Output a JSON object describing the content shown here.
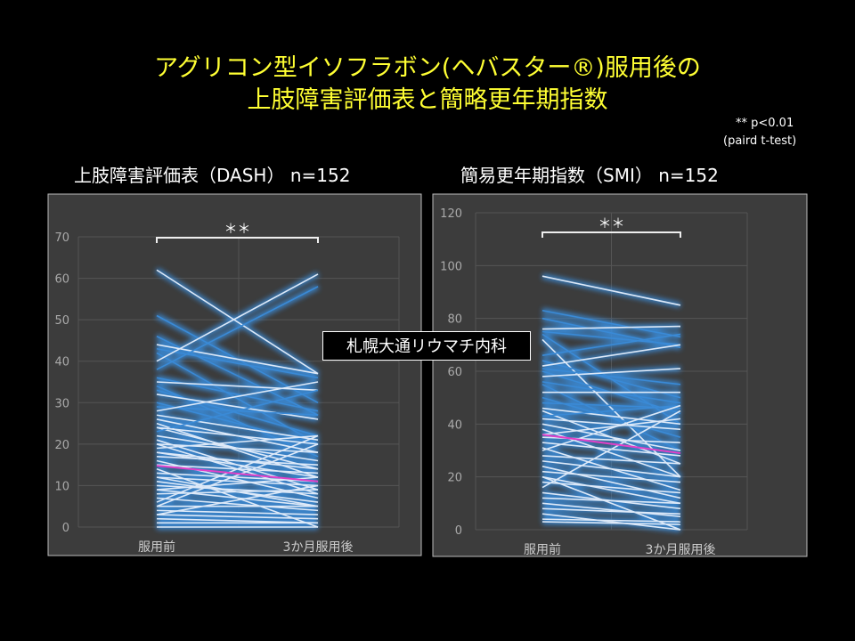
{
  "title": {
    "line1": "アグリコン型イソフラボン(ヘバスター®)服用後の",
    "line2": "上肢障害評価表と簡略更年期指数"
  },
  "note": {
    "line1": "** p<0.01",
    "line2": "(paird t-test)"
  },
  "watermark": "札幌大通リウマチ内科",
  "colors": {
    "title": "#ffff33",
    "line_blue": "#3a8ad6",
    "line_white": "#dde9f8",
    "mean": "#e040c8",
    "panel": "#3c3c3c"
  },
  "chart_data": [
    {
      "type": "line",
      "subtitle": "上肢障害評価表（DASH） n=152",
      "categories": [
        "服用前",
        "3か月服用後"
      ],
      "ylim": [
        0,
        70
      ],
      "yticks": [
        0,
        10,
        20,
        30,
        40,
        50,
        60,
        70
      ],
      "grid": true,
      "significance": "＊＊",
      "mean": [
        14.8,
        11
      ],
      "pairs": [
        [
          62,
          37
        ],
        [
          51,
          30
        ],
        [
          46,
          27
        ],
        [
          44,
          37
        ],
        [
          43,
          36
        ],
        [
          42,
          20
        ],
        [
          40,
          61
        ],
        [
          38,
          58
        ],
        [
          36,
          28
        ],
        [
          35,
          33
        ],
        [
          34,
          17
        ],
        [
          33,
          22
        ],
        [
          32,
          26
        ],
        [
          30,
          20
        ],
        [
          29,
          27
        ],
        [
          28,
          35
        ],
        [
          27,
          21
        ],
        [
          26,
          18
        ],
        [
          25,
          12
        ],
        [
          24,
          14
        ],
        [
          23,
          33
        ],
        [
          22,
          16
        ],
        [
          21,
          9
        ],
        [
          20,
          8
        ],
        [
          19,
          22
        ],
        [
          18,
          12
        ],
        [
          17,
          15
        ],
        [
          16,
          7
        ],
        [
          15,
          13
        ],
        [
          14,
          0
        ],
        [
          13,
          11
        ],
        [
          12,
          10
        ],
        [
          11,
          6
        ],
        [
          10,
          8
        ],
        [
          9,
          5
        ],
        [
          8,
          9
        ],
        [
          7,
          4
        ],
        [
          6,
          22
        ],
        [
          5,
          5
        ],
        [
          4,
          3
        ],
        [
          3,
          2
        ],
        [
          2,
          1
        ],
        [
          1,
          1
        ],
        [
          0,
          0
        ],
        [
          24,
          20
        ],
        [
          20,
          18
        ],
        [
          18,
          14
        ],
        [
          12,
          5
        ],
        [
          9,
          12
        ],
        [
          5,
          20
        ],
        [
          3,
          10
        ]
      ]
    },
    {
      "type": "line",
      "subtitle": "簡易更年期指数（SMI） n=152",
      "categories": [
        "服用前",
        "3か月服用後"
      ],
      "ylim": [
        0,
        120
      ],
      "yticks": [
        0,
        20,
        40,
        60,
        80,
        100,
        120
      ],
      "grid": true,
      "significance": "＊＊",
      "mean": [
        36,
        29
      ],
      "pairs": [
        [
          96,
          85
        ],
        [
          83,
          73
        ],
        [
          80,
          69
        ],
        [
          76,
          77
        ],
        [
          75,
          70
        ],
        [
          74,
          40
        ],
        [
          72,
          20
        ],
        [
          66,
          74
        ],
        [
          64,
          50
        ],
        [
          62,
          70
        ],
        [
          61,
          55
        ],
        [
          60,
          44
        ],
        [
          58,
          61
        ],
        [
          56,
          48
        ],
        [
          55,
          30
        ],
        [
          52,
          52
        ],
        [
          50,
          35
        ],
        [
          48,
          46
        ],
        [
          46,
          40
        ],
        [
          45,
          25
        ],
        [
          43,
          47
        ],
        [
          42,
          38
        ],
        [
          40,
          30
        ],
        [
          38,
          20
        ],
        [
          36,
          42
        ],
        [
          35,
          33
        ],
        [
          33,
          28
        ],
        [
          31,
          15
        ],
        [
          30,
          47
        ],
        [
          28,
          25
        ],
        [
          26,
          20
        ],
        [
          24,
          12
        ],
        [
          22,
          18
        ],
        [
          20,
          10
        ],
        [
          18,
          14
        ],
        [
          16,
          45
        ],
        [
          14,
          8
        ],
        [
          12,
          10
        ],
        [
          10,
          5
        ],
        [
          8,
          6
        ],
        [
          6,
          0
        ],
        [
          4,
          3
        ],
        [
          3,
          2
        ],
        [
          20,
          0
        ]
      ]
    }
  ]
}
